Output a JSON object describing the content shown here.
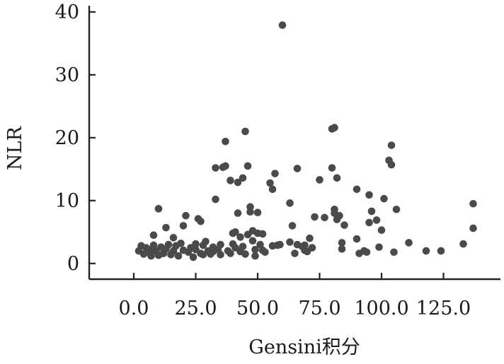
{
  "chart_data": {
    "type": "scatter",
    "xlabel": "Gensini积分",
    "ylabel": "NLR",
    "xlim": [
      -18,
      148
    ],
    "ylim": [
      -2.5,
      41
    ],
    "x_ticks": [
      0,
      25,
      50,
      75,
      100,
      125
    ],
    "x_tick_labels": [
      "0.0",
      "25.0",
      "50.0",
      "75.0",
      "100.0",
      "125.0"
    ],
    "y_ticks": [
      0,
      10,
      20,
      30,
      40
    ],
    "y_tick_labels": [
      "0",
      "10",
      "20",
      "30",
      "40"
    ],
    "grid": false,
    "legend": "none",
    "point_color": "#4a4a4a",
    "points": [
      [
        2,
        2.0
      ],
      [
        3,
        2.8
      ],
      [
        4,
        1.5
      ],
      [
        5,
        2.5
      ],
      [
        6,
        1.8
      ],
      [
        7,
        2.2
      ],
      [
        7,
        1.2
      ],
      [
        8,
        4.5
      ],
      [
        8,
        2.9
      ],
      [
        9,
        2.0
      ],
      [
        10,
        1.3
      ],
      [
        10,
        8.7
      ],
      [
        11,
        2.6
      ],
      [
        12,
        1.6
      ],
      [
        13,
        5.7
      ],
      [
        13,
        2.3
      ],
      [
        14,
        3.0
      ],
      [
        15,
        1.4
      ],
      [
        16,
        4.1
      ],
      [
        16,
        2.0
      ],
      [
        17,
        2.8
      ],
      [
        18,
        1.2
      ],
      [
        19,
        3.2
      ],
      [
        20,
        2.1
      ],
      [
        20,
        6.0
      ],
      [
        21,
        7.6
      ],
      [
        22,
        1.8
      ],
      [
        23,
        2.5
      ],
      [
        24,
        1.0
      ],
      [
        25,
        2.2
      ],
      [
        25,
        3.1
      ],
      [
        26,
        7.1
      ],
      [
        27,
        1.6
      ],
      [
        27,
        6.7
      ],
      [
        28,
        1.4
      ],
      [
        28,
        2.9
      ],
      [
        29,
        3.5
      ],
      [
        30,
        2.0
      ],
      [
        31,
        1.5
      ],
      [
        32,
        2.6
      ],
      [
        32,
        1.9
      ],
      [
        33,
        10.2
      ],
      [
        33,
        15.2
      ],
      [
        34,
        2.2
      ],
      [
        35,
        1.4
      ],
      [
        35,
        3.0
      ],
      [
        36,
        15.3
      ],
      [
        37,
        15.5
      ],
      [
        37,
        19.4
      ],
      [
        38,
        2.0
      ],
      [
        39,
        1.6
      ],
      [
        39,
        13.2
      ],
      [
        40,
        4.8
      ],
      [
        40,
        3.1
      ],
      [
        41,
        5.0
      ],
      [
        41,
        2.5
      ],
      [
        42,
        12.9
      ],
      [
        42,
        8.0
      ],
      [
        43,
        4.2
      ],
      [
        43,
        1.9
      ],
      [
        44,
        2.7
      ],
      [
        44,
        13.6
      ],
      [
        45,
        21.0
      ],
      [
        45,
        1.5
      ],
      [
        46,
        15.5
      ],
      [
        46,
        4.6
      ],
      [
        47,
        9.0
      ],
      [
        47,
        8.2
      ],
      [
        48,
        5.2
      ],
      [
        48,
        3.6
      ],
      [
        49,
        2.2
      ],
      [
        49,
        1.2
      ],
      [
        50,
        4.8
      ],
      [
        50,
        8.1
      ],
      [
        51,
        3.0
      ],
      [
        52,
        4.7
      ],
      [
        52,
        2.1
      ],
      [
        53,
        1.8
      ],
      [
        55,
        12.8
      ],
      [
        56,
        2.8
      ],
      [
        56,
        11.8
      ],
      [
        57,
        14.3
      ],
      [
        58,
        2.9
      ],
      [
        59,
        3.0
      ],
      [
        60,
        37.9
      ],
      [
        63,
        9.6
      ],
      [
        63,
        3.4
      ],
      [
        64,
        6.0
      ],
      [
        65,
        1.6
      ],
      [
        66,
        15.1
      ],
      [
        66,
        3.0
      ],
      [
        68,
        2.7
      ],
      [
        69,
        2.9
      ],
      [
        69,
        2.1
      ],
      [
        70,
        1.9
      ],
      [
        71,
        4.0
      ],
      [
        72,
        2.5
      ],
      [
        73,
        7.4
      ],
      [
        75,
        13.3
      ],
      [
        77,
        7.3
      ],
      [
        80,
        21.4
      ],
      [
        80,
        15.2
      ],
      [
        81,
        21.6
      ],
      [
        81,
        8.6
      ],
      [
        81,
        8.0
      ],
      [
        82,
        7.0
      ],
      [
        82,
        13.6
      ],
      [
        83,
        7.6
      ],
      [
        84,
        3.3
      ],
      [
        84,
        2.3
      ],
      [
        85,
        6.1
      ],
      [
        90,
        11.8
      ],
      [
        90,
        3.9
      ],
      [
        91,
        1.6
      ],
      [
        93,
        2.0
      ],
      [
        94,
        1.8
      ],
      [
        95,
        6.5
      ],
      [
        95,
        10.9
      ],
      [
        96,
        8.3
      ],
      [
        98,
        6.9
      ],
      [
        99,
        2.6
      ],
      [
        100,
        5.3
      ],
      [
        101,
        10.3
      ],
      [
        103,
        16.4
      ],
      [
        104,
        18.8
      ],
      [
        104,
        15.7
      ],
      [
        105,
        1.8
      ],
      [
        106,
        8.6
      ],
      [
        111,
        3.3
      ],
      [
        118,
        2.0
      ],
      [
        124,
        2.0
      ],
      [
        133,
        3.1
      ],
      [
        137,
        9.5
      ],
      [
        137,
        5.6
      ]
    ]
  }
}
